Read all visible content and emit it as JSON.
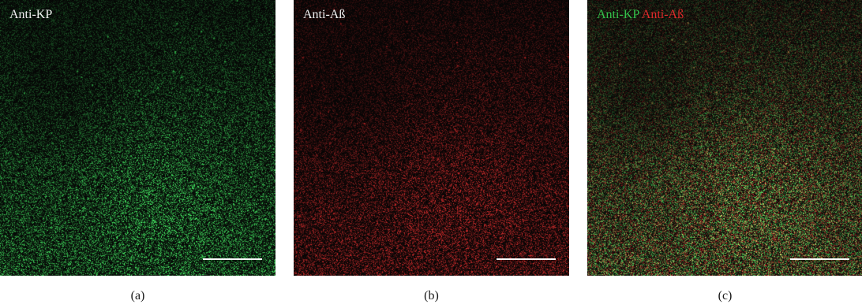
{
  "panels": [
    {
      "id": "a",
      "label": "Anti-KP",
      "caption": "(a)",
      "stain_color": "#3ddc5a"
    },
    {
      "id": "b",
      "label": "Anti-Aß",
      "caption": "(b)",
      "stain_color": "#e02b2b"
    },
    {
      "id": "c",
      "label_green": "Anti-KP",
      "label_red": "Anti-Aß",
      "caption": "(c)",
      "stain_colors": [
        "#3ddc5a",
        "#e02b2b"
      ]
    }
  ],
  "colors": {
    "background": "#050505",
    "green_channel": "#3ddc5a",
    "red_channel": "#e02b2b",
    "scale_bar": "#ffffff"
  }
}
